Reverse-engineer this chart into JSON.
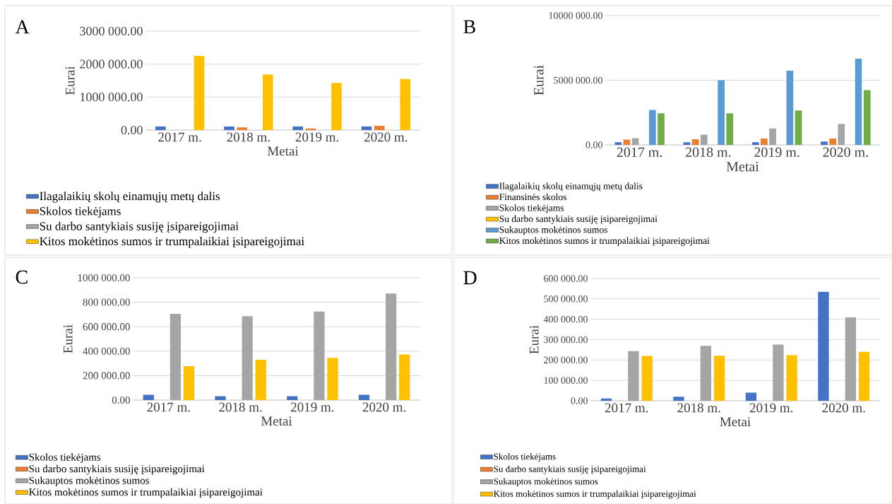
{
  "chart_data": [
    {
      "type": "bar",
      "title": "A",
      "xlabel": "Metai",
      "ylabel": "Eurai",
      "categories": [
        "2017 m.",
        "2018 m.",
        "2019 m.",
        "2020 m."
      ],
      "ylim": [
        0,
        3000000
      ],
      "yticks": [
        {
          "value": 0,
          "label": "0.00"
        },
        {
          "value": 1000000,
          "label": "1000 000.00"
        },
        {
          "value": 2000000,
          "label": "2000 000.00"
        },
        {
          "value": 3000000,
          "label": "3000 000.00"
        }
      ],
      "grid": "y",
      "legend": "bottom",
      "series": [
        {
          "name": "Ilagalaikių skolų einamųjų metų dalis",
          "color": "#4472c4",
          "values": [
            110000,
            110000,
            110000,
            110000
          ]
        },
        {
          "name": "Skolos tiekėjams",
          "color": "#ed7d31",
          "values": [
            0,
            80000,
            50000,
            130000
          ]
        },
        {
          "name": "Su darbo santykiais susiję įsipareigojimai",
          "color": "#a5a5a5",
          "values": [
            0,
            0,
            0,
            0
          ]
        },
        {
          "name": "Kitos mokėtinos sumos ir trumpalaikiai įsipareigojimai",
          "color": "#ffc000",
          "values": [
            2250000,
            1690000,
            1430000,
            1550000
          ]
        }
      ]
    },
    {
      "type": "bar",
      "title": "B",
      "xlabel": "Metai",
      "ylabel": "Eurai",
      "categories": [
        "2017 m.",
        "2018 m.",
        "2019 m.",
        "2020 m."
      ],
      "ylim": [
        0,
        10000000
      ],
      "yticks": [
        {
          "value": 0,
          "label": "0.00"
        },
        {
          "value": 5000000,
          "label": "5000 000.00"
        },
        {
          "value": 10000000,
          "label": "10000 000.00"
        }
      ],
      "grid": "y",
      "legend": "bottom",
      "series": [
        {
          "name": "Ilagalaikių skolų einamųjų metų dalis",
          "color": "#4472c4",
          "values": [
            200000,
            200000,
            200000,
            260000
          ]
        },
        {
          "name": "Finansinės skolos",
          "color": "#ed7d31",
          "values": [
            410000,
            440000,
            500000,
            500000
          ]
        },
        {
          "name": "Skolos tiekėjams",
          "color": "#a5a5a5",
          "values": [
            520000,
            790000,
            1270000,
            1620000
          ]
        },
        {
          "name": "Su darbo santykiais susiję įsipareigojimai",
          "color": "#ffc000",
          "values": [
            0,
            0,
            0,
            0
          ]
        },
        {
          "name": "Sukauptos mokėtinos sumos",
          "color": "#5b9bd5",
          "values": [
            2710000,
            5000000,
            5740000,
            6660000
          ]
        },
        {
          "name": "Kitos mokėtinos sumos ir trumpalaikiai įsipareigojimai",
          "color": "#70ad47",
          "values": [
            2450000,
            2450000,
            2660000,
            4240000
          ]
        }
      ]
    },
    {
      "type": "bar",
      "title": "C",
      "xlabel": "Metai",
      "ylabel": "Eurai",
      "categories": [
        "2017 m.",
        "2018 m.",
        "2019 m.",
        "2020 m."
      ],
      "ylim": [
        0,
        1000000
      ],
      "yticks": [
        {
          "value": 0,
          "label": "0.00"
        },
        {
          "value": 200000,
          "label": "200 000.00"
        },
        {
          "value": 400000,
          "label": "400 000.00"
        },
        {
          "value": 600000,
          "label": "600 000.00"
        },
        {
          "value": 800000,
          "label": "800 000.00"
        },
        {
          "value": 1000000,
          "label": "1000 000.00"
        }
      ],
      "grid": "y",
      "legend": "bottom",
      "series": [
        {
          "name": "Skolos tiekėjams",
          "color": "#4472c4",
          "values": [
            44000,
            32000,
            32000,
            44000
          ]
        },
        {
          "name": "Su darbo santykiais susiję įsipareigojimai",
          "color": "#ed7d31",
          "values": [
            0,
            0,
            0,
            0
          ]
        },
        {
          "name": "Sukauptos mokėtinos sumos",
          "color": "#a5a5a5",
          "values": [
            705000,
            687000,
            724000,
            872000
          ]
        },
        {
          "name": "Kitos mokėtinos sumos ir trumpalaikiai įsipareigojimai",
          "color": "#ffc000",
          "values": [
            278000,
            329000,
            346000,
            373000
          ]
        }
      ]
    },
    {
      "type": "bar",
      "title": "D",
      "xlabel": "Metai",
      "ylabel": "Eurai",
      "categories": [
        "2017 m.",
        "2018 m.",
        "2019 m.",
        "2020 m."
      ],
      "ylim": [
        0,
        600000
      ],
      "yticks": [
        {
          "value": 0,
          "label": "0.00"
        },
        {
          "value": 100000,
          "label": "100 000.00"
        },
        {
          "value": 200000,
          "label": "200 000.00"
        },
        {
          "value": 300000,
          "label": "300 000.00"
        },
        {
          "value": 400000,
          "label": "400 000.00"
        },
        {
          "value": 500000,
          "label": "500 000.00"
        },
        {
          "value": 600000,
          "label": "600 000.00"
        }
      ],
      "grid": "y",
      "legend": "bottom",
      "series": [
        {
          "name": "Skolos tiekėjams",
          "color": "#4472c4",
          "values": [
            11000,
            20000,
            40000,
            535000
          ]
        },
        {
          "name": "Su darbo santykiais susiję įsipareigojimai",
          "color": "#ed7d31",
          "values": [
            0,
            0,
            0,
            0
          ]
        },
        {
          "name": "Sukauptos mokėtinos sumos",
          "color": "#a5a5a5",
          "values": [
            244000,
            270000,
            276000,
            410000
          ]
        },
        {
          "name": "Kitos mokėtinos sumos ir trumpalaikiai įsipareigojimai",
          "color": "#ffc000",
          "values": [
            220000,
            221000,
            224000,
            240000
          ]
        }
      ]
    }
  ]
}
